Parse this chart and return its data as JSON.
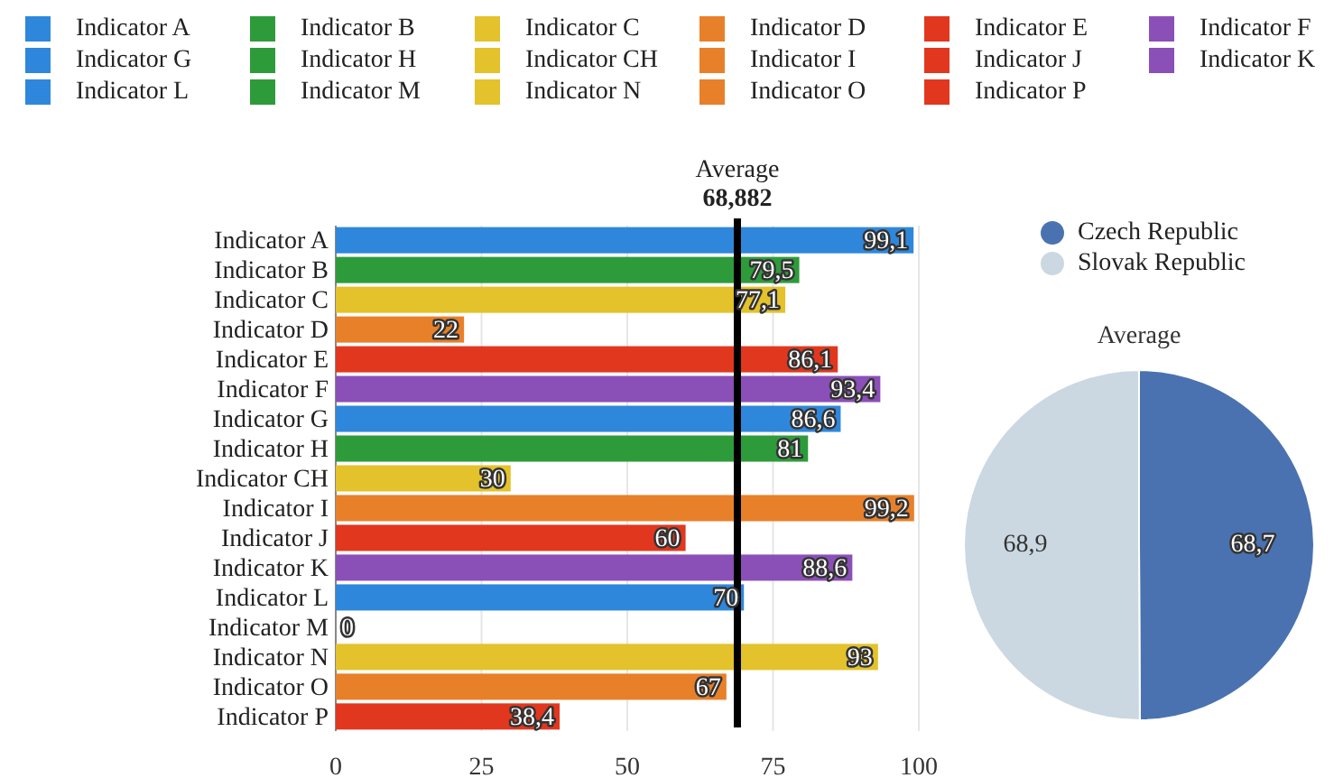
{
  "chart_data": [
    {
      "type": "bar",
      "orientation": "horizontal",
      "categories": [
        "Indicator A",
        "Indicator B",
        "Indicator C",
        "Indicator D",
        "Indicator E",
        "Indicator F",
        "Indicator G",
        "Indicator H",
        "Indicator CH",
        "Indicator I",
        "Indicator J",
        "Indicator K",
        "Indicator L",
        "Indicator M",
        "Indicator N",
        "Indicator O",
        "Indicator P"
      ],
      "values": [
        99.1,
        79.5,
        77.1,
        22,
        86.1,
        93.4,
        86.6,
        81,
        30,
        99.2,
        60,
        88.6,
        70,
        0,
        93,
        67,
        38.4
      ],
      "value_labels": [
        "99,1",
        "79,5",
        "77,1",
        "22",
        "86,1",
        "93,4",
        "86,6",
        "81",
        "30",
        "99,2",
        "60",
        "88,6",
        "70",
        "0",
        "93",
        "67",
        "38,4"
      ],
      "colors": [
        "#2f87dc",
        "#2e9b3b",
        "#e3c22b",
        "#e8802a",
        "#e2371f",
        "#8b4fb8",
        "#2f87dc",
        "#2e9b3b",
        "#e3c22b",
        "#e8802a",
        "#e2371f",
        "#8b4fb8",
        "#2f87dc",
        "#2e9b3b",
        "#e3c22b",
        "#e8802a",
        "#e2371f"
      ],
      "xlim": [
        0,
        100
      ],
      "xticks": [
        0,
        25,
        50,
        75,
        100
      ],
      "grid": "x",
      "legend": "top",
      "ref_lines": [
        {
          "axis": "x",
          "value": 68.882,
          "label": "Average\n68,882",
          "color": "#000000"
        }
      ]
    },
    {
      "type": "pie",
      "title": "Average",
      "categories": [
        "Czech Republic",
        "Slovak Republic"
      ],
      "values": [
        68.7,
        68.9
      ],
      "colors": [
        "#4a72b0",
        "#cbd8e2"
      ],
      "value_labels": [
        "68,7",
        "68,9"
      ],
      "legend": "top"
    }
  ]
}
